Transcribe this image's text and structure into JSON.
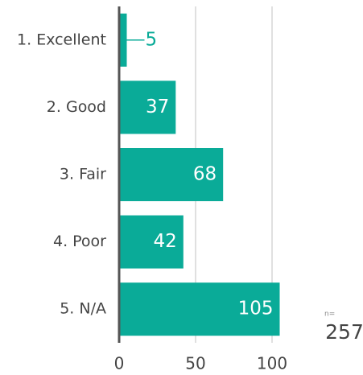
{
  "chart_data": {
    "type": "bar",
    "orientation": "horizontal",
    "categories": [
      "1. Excellent",
      "2. Good",
      "3. Fair",
      "4. Poor",
      "5. N/A"
    ],
    "values": [
      5,
      37,
      68,
      42,
      105
    ],
    "color": "#0aab98",
    "xlim": [
      0,
      110
    ],
    "xticks": [
      0,
      50,
      100
    ],
    "grid": true,
    "annotation": {
      "label": "n=",
      "value": 257
    }
  }
}
